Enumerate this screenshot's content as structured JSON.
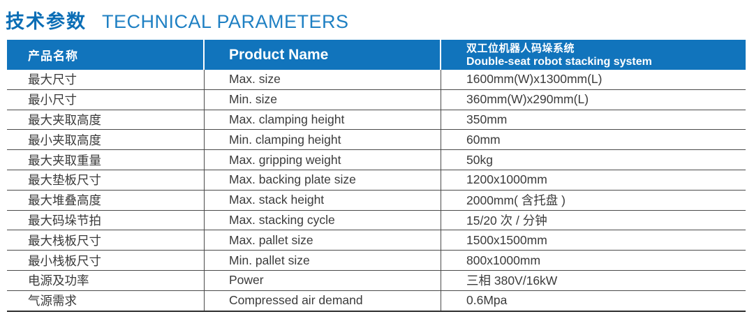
{
  "title": {
    "zh": "技术参数",
    "en": "TECHNICAL PARAMETERS"
  },
  "table": {
    "header": {
      "product_name_zh": "产品名称",
      "product_name_en": "Product Name",
      "system_zh": "双工位机器人码垛系统",
      "system_en": "Double-seat robot stacking system"
    },
    "rows": [
      {
        "name_zh": "最大尺寸",
        "name_en": "Max. size",
        "value": "1600mm(W)x1300mm(L)"
      },
      {
        "name_zh": "最小尺寸",
        "name_en": "Min. size",
        "value": "360mm(W)x290mm(L)"
      },
      {
        "name_zh": "最大夹取高度",
        "name_en": "Max. clamping height",
        "value": "350mm"
      },
      {
        "name_zh": "最小夹取高度",
        "name_en": "Min. clamping height",
        "value": "60mm"
      },
      {
        "name_zh": "最大夹取重量",
        "name_en": "Max. gripping weight",
        "value": "50kg"
      },
      {
        "name_zh": "最大垫板尺寸",
        "name_en": "Max. backing plate size",
        "value": "1200x1000mm"
      },
      {
        "name_zh": "最大堆叠高度",
        "name_en": "Max. stack height",
        "value": "2000mm( 含托盘 )"
      },
      {
        "name_zh": "最大码垛节拍",
        "name_en": "Max. stacking cycle",
        "value": "15/20 次 / 分钟"
      },
      {
        "name_zh": "最大栈板尺寸",
        "name_en": "Max. pallet size",
        "value": "1500x1500mm"
      },
      {
        "name_zh": "最小栈板尺寸",
        "name_en": "Min. pallet size",
        "value": "800x1000mm"
      },
      {
        "name_zh": "电源及功率",
        "name_en": "Power",
        "value": "三相 380V/16kW"
      },
      {
        "name_zh": "气源需求",
        "name_en": "Compressed air demand",
        "value": "0.6Mpa"
      }
    ]
  },
  "colors": {
    "header_bg": "#1174bc",
    "title_zh": "#0a6db5",
    "title_en": "#1f80c3",
    "body_text": "#3b3b3b",
    "grid_line": "#4a4a4a",
    "bottom_border": "#2e2e2e"
  }
}
